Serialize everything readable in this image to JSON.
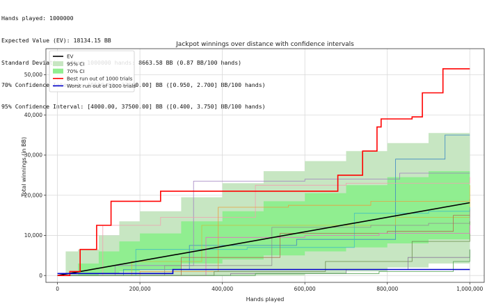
{
  "stats_lines": [
    "Hands played: 1000000",
    "Expected Value (EV): 18134.15 BB",
    "Standard Deviation after 1000000 hands: 8663.58 BB (0.87 BB/100 hands)",
    "70% Confidence Interval: [9500.00, 27000.00] BB ([0.950, 2.700] BB/100 hands)",
    "95% Confidence Interval: [4000.00, 37500.00] BB ([0.400, 3.750] BB/100 hands)"
  ],
  "chart_data": {
    "type": "line",
    "title": "Jackpot winnings over distance with confidence intervals",
    "xlabel": "Hands played",
    "ylabel": "Total winnings (in BB)",
    "xlim": [
      -28000,
      1035000
    ],
    "ylim": [
      -1700,
      56500
    ],
    "xticks": [
      0,
      200000,
      400000,
      600000,
      800000,
      1000000
    ],
    "xtick_labels": [
      "0",
      "200,000",
      "400,000",
      "600,000",
      "800,000",
      "1,000,000"
    ],
    "yticks": [
      0,
      10000,
      20000,
      30000,
      40000,
      50000
    ],
    "ytick_labels": [
      "0",
      "10,000",
      "20,000",
      "30,000",
      "40,000",
      "50,000"
    ],
    "grid": true,
    "legend_position": "top-left",
    "legend": [
      {
        "label": "EV",
        "kind": "line",
        "color": "#000000"
      },
      {
        "label": "95% CI",
        "kind": "patch",
        "color": "#c7e6c2"
      },
      {
        "label": "70% CI",
        "kind": "patch",
        "color": "#90ee90"
      },
      {
        "label": "Best run out of 1000 trials",
        "kind": "line",
        "color": "#ff0000"
      },
      {
        "label": "Worst run out of 1000 trials",
        "kind": "line",
        "color": "#0000cc"
      }
    ],
    "ev": {
      "x": [
        0,
        1000000
      ],
      "y": [
        0,
        18134
      ]
    },
    "ci95": {
      "x": [
        0,
        20000,
        50000,
        100000,
        150000,
        200000,
        300000,
        400000,
        500000,
        600000,
        700000,
        800000,
        900000,
        1000000
      ],
      "low": [
        0,
        0,
        0,
        0,
        0,
        0,
        0,
        0,
        0,
        500,
        1000,
        2000,
        3000,
        4000
      ],
      "high": [
        0,
        6000,
        6500,
        10000,
        13500,
        16000,
        19500,
        23000,
        26000,
        28500,
        31000,
        33000,
        35500,
        37500
      ]
    },
    "ci70": {
      "x": [
        0,
        50000,
        100000,
        150000,
        200000,
        300000,
        400000,
        500000,
        600000,
        700000,
        800000,
        900000,
        1000000
      ],
      "low": [
        0,
        0,
        500,
        1000,
        1500,
        3000,
        4000,
        5000,
        6000,
        7000,
        8000,
        9000,
        9500
      ],
      "high": [
        0,
        3000,
        6000,
        8500,
        10500,
        13500,
        16000,
        18500,
        20500,
        22500,
        24500,
        26000,
        27000
      ]
    },
    "series": [
      {
        "name": "Best run out of 1000 trials",
        "color": "#ff0000",
        "width": 1.6,
        "x": [
          0,
          30000,
          55000,
          95000,
          130000,
          250000,
          590000,
          680000,
          740000,
          775000,
          785000,
          860000,
          885000,
          910000,
          935000,
          1000000
        ],
        "y": [
          0,
          1000,
          6500,
          12500,
          18500,
          21000,
          21000,
          25000,
          31000,
          37000,
          39000,
          39500,
          45500,
          45500,
          51500,
          51500
        ]
      },
      {
        "name": "Worst run out of 1000 trials",
        "color": "#0000cc",
        "width": 1.6,
        "x": [
          0,
          280000,
          1000000
        ],
        "y": [
          500,
          1500,
          1500
        ]
      },
      {
        "color": "#3b88c4",
        "width": 0.8,
        "x": [
          0,
          160000,
          320000,
          580000,
          820000,
          940000,
          1000000
        ],
        "y": [
          0,
          1500,
          7500,
          9000,
          29000,
          35000,
          35000
        ]
      },
      {
        "color": "#a080c0",
        "width": 0.8,
        "x": [
          0,
          140000,
          330000,
          600000,
          830000,
          1000000
        ],
        "y": [
          0,
          2500,
          23500,
          24000,
          25500,
          25500
        ]
      },
      {
        "color": "#f0a0b0",
        "width": 0.8,
        "x": [
          0,
          110000,
          250000,
          480000,
          700000,
          1000000
        ],
        "y": [
          0,
          12500,
          14500,
          22500,
          23000,
          24500
        ]
      },
      {
        "color": "#c8c040",
        "width": 0.8,
        "x": [
          0,
          180000,
          350000,
          500000,
          820000,
          1000000
        ],
        "y": [
          0,
          3500,
          12500,
          12500,
          14500,
          22500
        ]
      },
      {
        "color": "#e8a040",
        "width": 0.8,
        "x": [
          0,
          200000,
          390000,
          560000,
          760000,
          1000000
        ],
        "y": [
          0,
          1000,
          17000,
          17500,
          18500,
          19000
        ]
      },
      {
        "color": "#40c0c0",
        "width": 0.8,
        "x": [
          0,
          190000,
          460000,
          720000,
          900000,
          1000000
        ],
        "y": [
          0,
          6500,
          7000,
          15500,
          16000,
          17000
        ]
      },
      {
        "color": "#909090",
        "width": 0.8,
        "x": [
          0,
          260000,
          520000,
          760000,
          900000,
          1000000
        ],
        "y": [
          0,
          2500,
          12000,
          12500,
          13000,
          16500
        ]
      },
      {
        "color": "#b07050",
        "width": 0.8,
        "x": [
          0,
          300000,
          540000,
          800000,
          960000,
          1000000
        ],
        "y": [
          0,
          4500,
          10500,
          11000,
          15000,
          15000
        ]
      },
      {
        "color": "#6a8a4a",
        "width": 0.8,
        "x": [
          0,
          380000,
          650000,
          860000,
          1000000
        ],
        "y": [
          0,
          1000,
          3500,
          8500,
          13500
        ]
      },
      {
        "color": "#8a7a9a",
        "width": 0.8,
        "x": [
          0,
          420000,
          700000,
          850000,
          1000000
        ],
        "y": [
          0,
          500,
          1500,
          4500,
          6500
        ]
      },
      {
        "color": "#e070c0",
        "width": 0.8,
        "x": [
          0,
          360000,
          600000,
          780000,
          1000000
        ],
        "y": [
          0,
          9500,
          10000,
          10500,
          12500
        ]
      },
      {
        "color": "#50a050",
        "width": 0.8,
        "x": [
          0,
          480000,
          780000,
          960000,
          1000000
        ],
        "y": [
          0,
          500,
          1000,
          3500,
          6500
        ]
      }
    ]
  }
}
